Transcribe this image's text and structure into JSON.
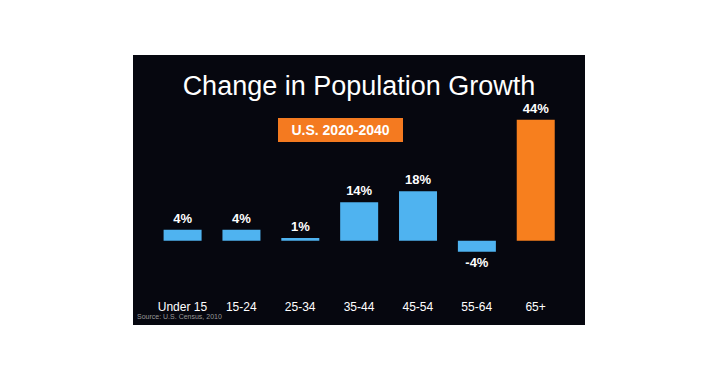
{
  "chart_data": {
    "type": "bar",
    "title": "Change in Population Growth",
    "subtitle": "U.S. 2020-2040",
    "source": "Source: U.S. Census, 2010",
    "categories": [
      "Under 15",
      "15-24",
      "25-34",
      "35-44",
      "45-54",
      "55-64",
      "65+"
    ],
    "values": [
      4,
      4,
      1,
      14,
      18,
      -4,
      44
    ],
    "value_labels": [
      "4%",
      "4%",
      "1%",
      "14%",
      "18%",
      "-4%",
      "44%"
    ],
    "colors": [
      "#4fb3f0",
      "#4fb3f0",
      "#4fb3f0",
      "#4fb3f0",
      "#4fb3f0",
      "#4fb3f0",
      "#f77f1e"
    ],
    "data_labels": true,
    "tick_labels": "x",
    "grid": false
  }
}
